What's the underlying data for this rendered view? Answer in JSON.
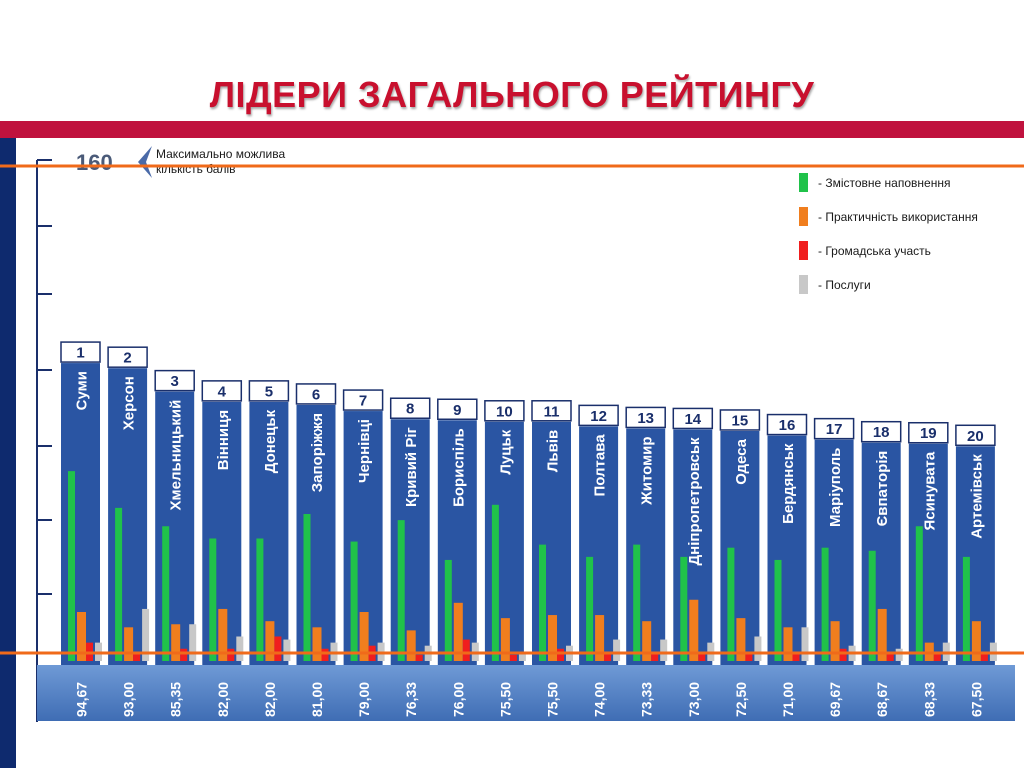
{
  "page": {
    "title": "ЛІДЕРИ ЗАГАЛЬНОГО РЕЙТИНГУ"
  },
  "colors": {
    "accent_red": "#c0123e",
    "title_red": "#c8102e",
    "bar_blue": "#2a55a3",
    "score_panel": "#4f7cc0",
    "orange_line": "#f06a1a",
    "content": "#20c24a",
    "practicality": "#f07e1e",
    "participation": "#f01e1e",
    "services": "#c8c8c8"
  },
  "max_note": {
    "value": "160",
    "line1": "Максимально можлива",
    "line2": "кількість балів"
  },
  "chart_data": {
    "type": "bar",
    "ylim": [
      0,
      160
    ],
    "max_score": 160,
    "legend_position": "top-right",
    "legend": [
      {
        "key": "content",
        "label": "Змістовне наповнення"
      },
      {
        "key": "practicality",
        "label": "Практичність використання"
      },
      {
        "key": "participation",
        "label": "Громадська участь"
      },
      {
        "key": "services",
        "label": "Послуги"
      }
    ],
    "cities": [
      {
        "rank": "1",
        "name": "Суми",
        "score": "94,67",
        "total": 94.67,
        "components": [
          62,
          16,
          6,
          6
        ]
      },
      {
        "rank": "2",
        "name": "Херсон",
        "score": "93,00",
        "total": 93.0,
        "components": [
          50,
          11,
          3,
          17
        ]
      },
      {
        "rank": "3",
        "name": "Хмельницький",
        "score": "85,35",
        "total": 85.35,
        "components": [
          44,
          12,
          4,
          12
        ]
      },
      {
        "rank": "4",
        "name": "Вінниця",
        "score": "82,00",
        "total": 82.0,
        "components": [
          40,
          17,
          4,
          8
        ]
      },
      {
        "rank": "5",
        "name": "Донецьк",
        "score": "82,00",
        "total": 82.0,
        "components": [
          40,
          13,
          8,
          7
        ]
      },
      {
        "rank": "6",
        "name": "Запоріжжя",
        "score": "81,00",
        "total": 81.0,
        "components": [
          48,
          11,
          4,
          6
        ]
      },
      {
        "rank": "7",
        "name": "Чернівці",
        "score": "79,00",
        "total": 79.0,
        "components": [
          39,
          16,
          5,
          6
        ]
      },
      {
        "rank": "8",
        "name": "Кривий Ріг",
        "score": "76,33",
        "total": 76.33,
        "components": [
          46,
          10,
          2,
          5
        ]
      },
      {
        "rank": "9",
        "name": "Бориспіль",
        "score": "76,00",
        "total": 76.0,
        "components": [
          33,
          19,
          7,
          6
        ]
      },
      {
        "rank": "10",
        "name": "Луцьк",
        "score": "75,50",
        "total": 75.5,
        "components": [
          51,
          14,
          2,
          3
        ]
      },
      {
        "rank": "11",
        "name": "Львів",
        "score": "75,50",
        "total": 75.5,
        "components": [
          38,
          15,
          4,
          5
        ]
      },
      {
        "rank": "12",
        "name": "Полтава",
        "score": "74,00",
        "total": 74.0,
        "components": [
          34,
          15,
          3,
          7
        ]
      },
      {
        "rank": "13",
        "name": "Житомир",
        "score": "73,33",
        "total": 73.33,
        "components": [
          38,
          13,
          3,
          7
        ]
      },
      {
        "rank": "14",
        "name": "Дніпропетровськ",
        "score": "73,00",
        "total": 73.0,
        "components": [
          34,
          20,
          3,
          6
        ]
      },
      {
        "rank": "15",
        "name": "Одеса",
        "score": "72,50",
        "total": 72.5,
        "components": [
          37,
          14,
          3,
          8
        ]
      },
      {
        "rank": "16",
        "name": "Бердянськ",
        "score": "71,00",
        "total": 71.0,
        "components": [
          33,
          11,
          3,
          11
        ]
      },
      {
        "rank": "17",
        "name": "Маріуполь",
        "score": "69,67",
        "total": 69.67,
        "components": [
          37,
          13,
          4,
          5
        ]
      },
      {
        "rank": "18",
        "name": "Євпаторія",
        "score": "68,67",
        "total": 68.67,
        "components": [
          36,
          17,
          3,
          4
        ]
      },
      {
        "rank": "19",
        "name": "Ясинувата",
        "score": "68,33",
        "total": 68.33,
        "components": [
          44,
          6,
          3,
          6
        ]
      },
      {
        "rank": "20",
        "name": "Артемівськ",
        "score": "67,50",
        "total": 67.5,
        "components": [
          34,
          13,
          3,
          6
        ]
      }
    ]
  }
}
